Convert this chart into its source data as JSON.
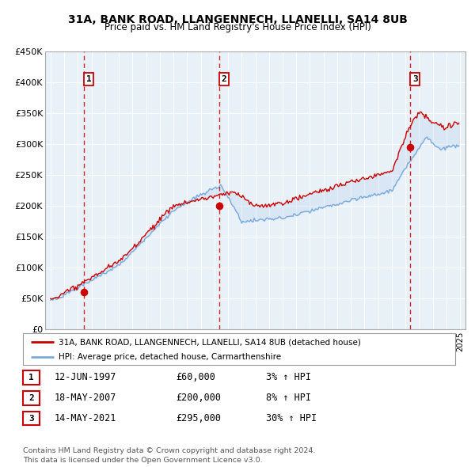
{
  "title": "31A, BANK ROAD, LLANGENNECH, LLANELLI, SA14 8UB",
  "subtitle": "Price paid vs. HM Land Registry's House Price Index (HPI)",
  "line_color_red": "#cc0000",
  "line_color_blue": "#7aaadd",
  "fill_color": "#c8ddf0",
  "plot_bg": "#e8f0f8",
  "grid_color": "#ffffff",
  "ylim": [
    0,
    450000
  ],
  "yticks": [
    0,
    50000,
    100000,
    150000,
    200000,
    250000,
    300000,
    350000,
    400000,
    450000
  ],
  "ylabel_fmt": [
    "£0",
    "£50K",
    "£100K",
    "£150K",
    "£200K",
    "£250K",
    "£300K",
    "£350K",
    "£400K",
    "£450K"
  ],
  "xlim_start": 1994.6,
  "xlim_end": 2025.4,
  "purchases": [
    {
      "year": 1997.44,
      "price": 60000,
      "label": "1"
    },
    {
      "year": 2007.37,
      "price": 200000,
      "label": "2"
    },
    {
      "year": 2021.36,
      "price": 295000,
      "label": "3"
    }
  ],
  "legend_line1": "31A, BANK ROAD, LLANGENNECH, LLANELLI, SA14 8UB (detached house)",
  "legend_line2": "HPI: Average price, detached house, Carmarthenshire",
  "footer": "Contains HM Land Registry data © Crown copyright and database right 2024.\nThis data is licensed under the Open Government Licence v3.0.",
  "table_rows": [
    [
      "1",
      "12-JUN-1997",
      "£60,000",
      "3% ↑ HPI"
    ],
    [
      "2",
      "18-MAY-2007",
      "£200,000",
      "8% ↑ HPI"
    ],
    [
      "3",
      "14-MAY-2021",
      "£295,000",
      "30% ↑ HPI"
    ]
  ]
}
